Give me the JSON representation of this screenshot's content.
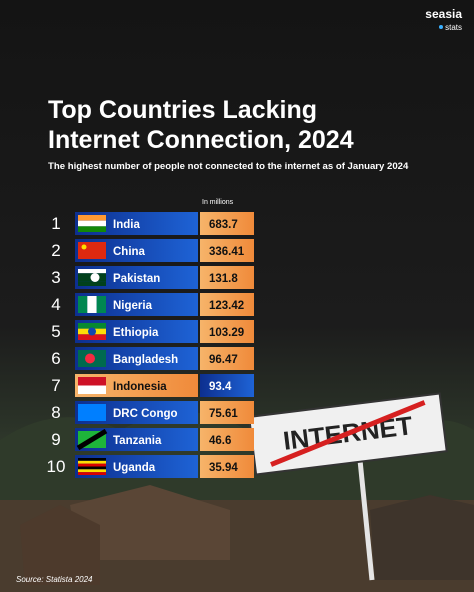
{
  "brand": {
    "name": "seasia",
    "sub": "stats"
  },
  "header": {
    "title_line1": "Top Countries Lacking",
    "title_line2": "Internet Connection, 2024",
    "subtitle": "The highest number of people not connected to the internet as of January 2024"
  },
  "table": {
    "unit_note": "In millions",
    "rows": [
      [
        1,
        "India",
        683.7
      ],
      [
        2,
        "China",
        336.41
      ],
      [
        3,
        "Pakistan",
        131.8
      ],
      [
        4,
        "Nigeria",
        123.42
      ],
      [
        5,
        "Ethiopia",
        103.29
      ],
      [
        6,
        "Bangladesh",
        96.47
      ],
      [
        7,
        "Indonesia",
        93.4
      ],
      [
        8,
        "DRC Congo",
        75.61
      ],
      [
        9,
        "Tanzania",
        46.6
      ],
      [
        10,
        "Uganda",
        35.94
      ]
    ]
  },
  "sign": {
    "text": "INTERNET"
  },
  "footer": {
    "source": "Source: Statista 2024"
  }
}
